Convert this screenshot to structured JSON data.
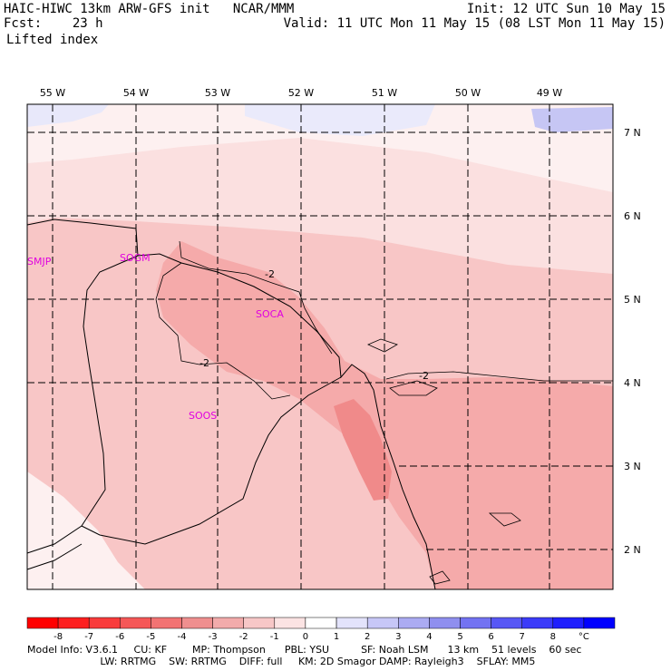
{
  "header": {
    "line1_left": "HAIC-HIWC 13km ARW-GFS init   NCAR/MMM",
    "line2_left_label": "Fcst:",
    "line2_left_value": "23 h",
    "line1_right": "Init: 12 UTC Sun 10 May 15",
    "line2_right": "Valid: 11 UTC Mon 11 May 15 (08 LST Mon 11 May 15)",
    "field": "Lifted index"
  },
  "map": {
    "lon_labels": [
      "55 W",
      "54 W",
      "53 W",
      "52 W",
      "51 W",
      "50 W",
      "49 W"
    ],
    "lat_labels": [
      "7 N",
      "6 N",
      "5 N",
      "4 N",
      "3 N",
      "2 N"
    ],
    "stations": [
      "SMJP",
      "SOGM",
      "SOCA",
      "SOOS"
    ],
    "contour_labels": [
      "-2",
      "-2",
      "-2"
    ],
    "colors": {
      "lightest": "#fdf0f0",
      "light": "#fbe0e0",
      "pink": "#f8c6c6",
      "medium": "#f5aaaa",
      "dark": "#f08a8a",
      "blue_faint": "#e8e8fa",
      "blue": "#c6c6f4"
    }
  },
  "colorbar": {
    "labels": [
      "-8",
      "-7",
      "-6",
      "-5",
      "-4",
      "-3",
      "-2",
      "-1",
      "0",
      "1",
      "2",
      "3",
      "4",
      "5",
      "6",
      "7",
      "8",
      "°C"
    ],
    "colors": [
      "#ff0000",
      "#fd1f1f",
      "#f93b3b",
      "#f55757",
      "#f27373",
      "#ef8f8f",
      "#f2abab",
      "#f7c7c7",
      "#fbe3e3",
      "#ffffff",
      "#e3e3fb",
      "#c7c7f7",
      "#ababf2",
      "#8f8fef",
      "#7373f2",
      "#5757f5",
      "#3b3bf9",
      "#1f1ffd",
      "#0000ff"
    ]
  },
  "model_info": {
    "line1": "Model Info: V3.6.1     CU: KF        MP: Thompson      PBL: YSU          SF: Noah LSM      13 km    51 levels    60 sec",
    "line2": "                       LW: RRTMG    SW: RRTMG    DIFF: full     KM: 2D Smagor DAMP: Rayleigh3    SFLAY: MM5"
  }
}
